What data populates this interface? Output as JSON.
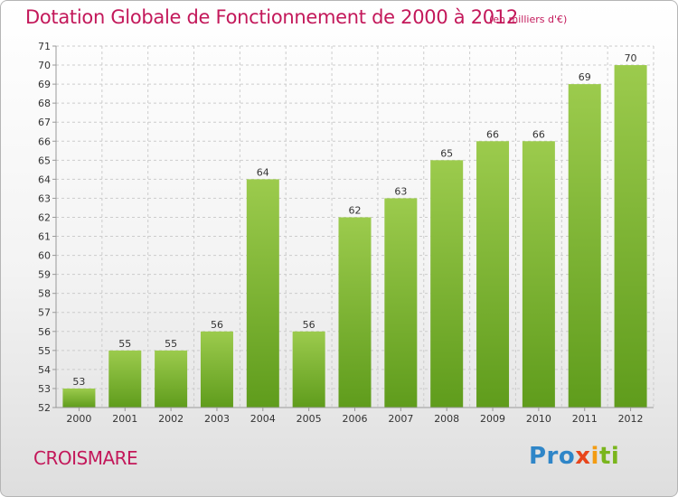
{
  "title": "Dotation Globale de Fonctionnement de 2000 à 2012",
  "subtitle": "(en milliers d'€)",
  "commune": "CROISMARE",
  "logo": {
    "p1": "Pro",
    "p2": "x",
    "p3": "i",
    "p4": "ti"
  },
  "colors": {
    "title": "#c3185a",
    "bar_light": "#9ccb4d",
    "bar_dark": "#5f9c1c",
    "grid": "#cccccc"
  },
  "chart_data": {
    "type": "bar",
    "categories": [
      "2000",
      "2001",
      "2002",
      "2003",
      "2004",
      "2005",
      "2006",
      "2007",
      "2008",
      "2009",
      "2010",
      "2011",
      "2012"
    ],
    "values": [
      53,
      55,
      55,
      56,
      64,
      56,
      62,
      63,
      65,
      66,
      66,
      69,
      70
    ],
    "ylim": [
      52,
      71
    ],
    "yticks": [
      52,
      53,
      54,
      55,
      56,
      57,
      58,
      59,
      60,
      61,
      62,
      63,
      64,
      65,
      66,
      67,
      68,
      69,
      70,
      71
    ],
    "grid": true,
    "data_labels": true
  }
}
